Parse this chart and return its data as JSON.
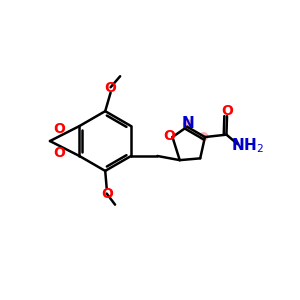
{
  "bg_color": "#ffffff",
  "bond_color": "#000000",
  "oxygen_color": "#ff0000",
  "nitrogen_color": "#0000cc",
  "highlight_color": "#ffaaaa",
  "bond_width": 1.8,
  "figsize": [
    3.0,
    3.0
  ],
  "dpi": 100,
  "xlim": [
    0,
    10
  ],
  "ylim": [
    0,
    10
  ]
}
